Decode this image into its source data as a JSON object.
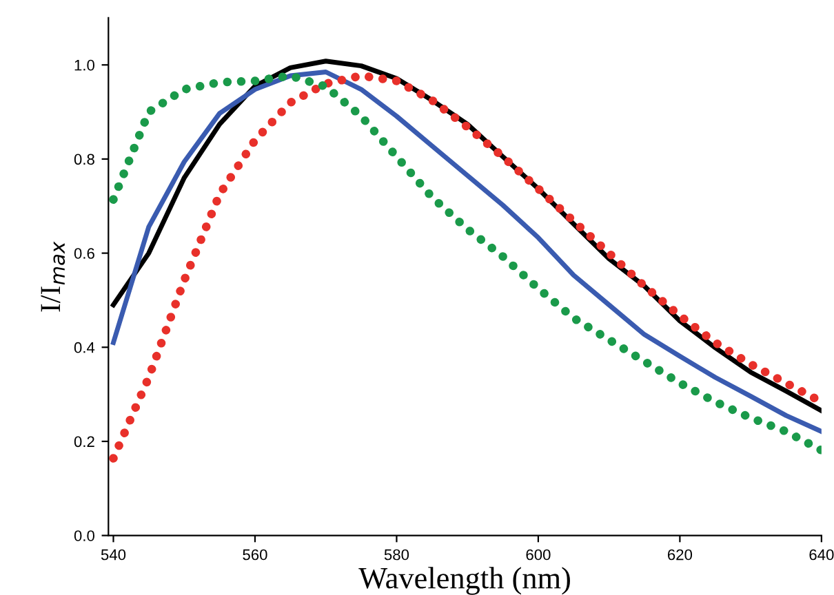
{
  "chart_data": {
    "type": "line",
    "xlabel": "Wavelength (nm)",
    "ylabel": "I/I$_{max}$",
    "xlim": [
      539.3,
      640
    ],
    "ylim": [
      0,
      1.1
    ],
    "xticks": [
      540,
      560,
      580,
      600,
      620,
      640
    ],
    "yticks": [
      {
        "value": 0,
        "label": "0.0"
      },
      {
        "value": 0.2,
        "label": "0.2"
      },
      {
        "value": 0.4,
        "label": "0.4"
      },
      {
        "value": 0.6,
        "label": "0.6"
      },
      {
        "value": 0.8,
        "label": "0.8"
      },
      {
        "value": 1.0,
        "label": "1.0"
      }
    ],
    "grid": false,
    "legend": false,
    "x": [
      540,
      545,
      550,
      555,
      560,
      565,
      570,
      575,
      580,
      585,
      590,
      595,
      600,
      605,
      610,
      615,
      620,
      625,
      630,
      635,
      640
    ],
    "series": [
      {
        "color": "#000000",
        "line_style": "solid",
        "values": [
          0.49,
          0.6,
          0.76,
          0.874,
          0.955,
          0.994,
          1.008,
          0.998,
          0.971,
          0.925,
          0.874,
          0.805,
          0.737,
          0.662,
          0.588,
          0.53,
          0.456,
          0.399,
          0.347,
          0.307,
          0.265
        ]
      },
      {
        "color": "#3a5bb0",
        "line_style": "solid",
        "values": [
          0.41,
          0.656,
          0.794,
          0.897,
          0.948,
          0.977,
          0.985,
          0.948,
          0.891,
          0.828,
          0.765,
          0.702,
          0.633,
          0.553,
          0.49,
          0.427,
          0.381,
          0.336,
          0.296,
          0.255,
          0.221
        ]
      },
      {
        "color": "#e8302a",
        "line_style": "dotted",
        "values": [
          0.164,
          0.336,
          0.542,
          0.725,
          0.84,
          0.92,
          0.96,
          0.977,
          0.966,
          0.925,
          0.868,
          0.805,
          0.737,
          0.668,
          0.6,
          0.53,
          0.467,
          0.41,
          0.364,
          0.324,
          0.284
        ]
      },
      {
        "color": "#1a9a4a",
        "line_style": "dotted",
        "values": [
          0.714,
          0.9,
          0.948,
          0.963,
          0.966,
          0.977,
          0.954,
          0.891,
          0.805,
          0.719,
          0.651,
          0.593,
          0.525,
          0.462,
          0.416,
          0.37,
          0.324,
          0.284,
          0.25,
          0.221,
          0.181
        ]
      }
    ]
  }
}
